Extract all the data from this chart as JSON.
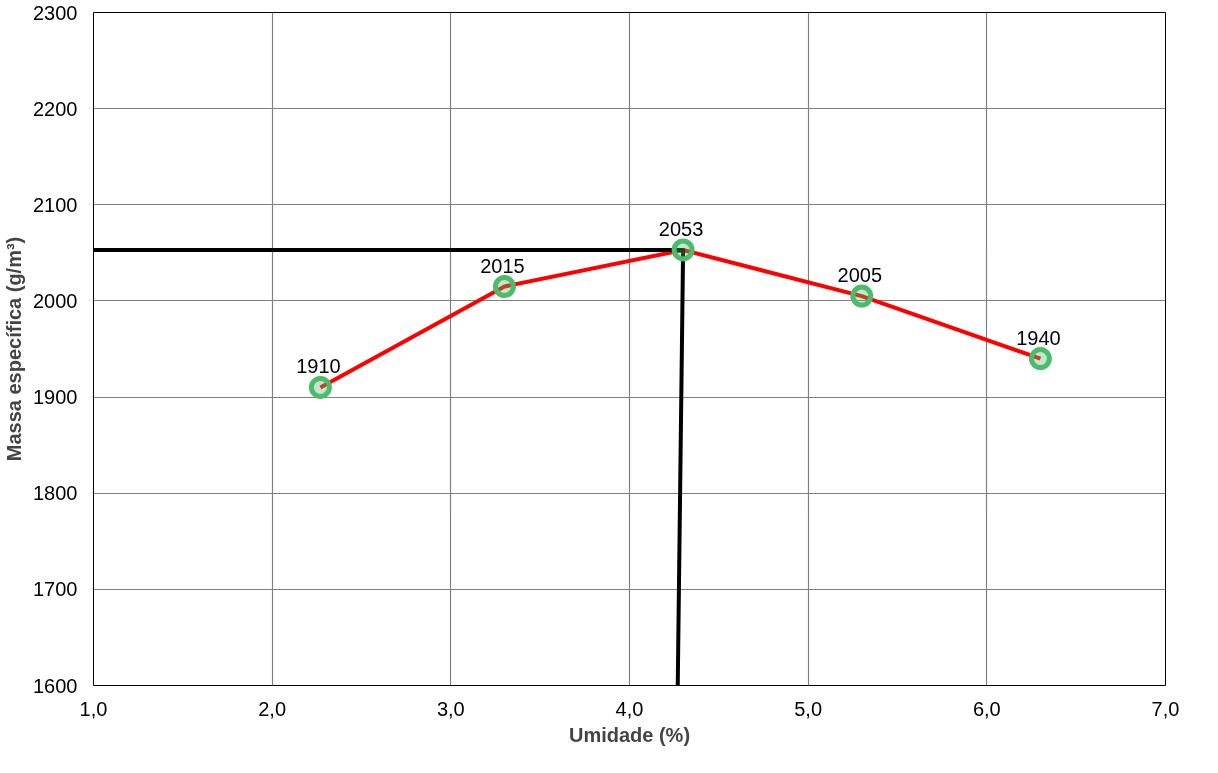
{
  "chart_data": {
    "type": "scatter",
    "xlabel": "Umidade (%)",
    "ylabel": "Massa específica (g/m³)",
    "xlim": [
      1.0,
      7.0
    ],
    "ylim": [
      1600,
      2300
    ],
    "xticks": [
      {
        "value": 1,
        "label": "1,0"
      },
      {
        "value": 2,
        "label": "2,0"
      },
      {
        "value": 3,
        "label": "3,0"
      },
      {
        "value": 4,
        "label": "4,0"
      },
      {
        "value": 5,
        "label": "5,0"
      },
      {
        "value": 6,
        "label": "6,0"
      },
      {
        "value": 7,
        "label": "7,0"
      }
    ],
    "yticks": [
      1600,
      1700,
      1800,
      1900,
      2000,
      2100,
      2200,
      2300
    ],
    "grid": true,
    "series": [
      {
        "type": "line",
        "color": "#ff0000",
        "x": [
          2.27,
          3.3,
          4.3,
          5.3,
          6.3
        ],
        "values": [
          1910,
          2015,
          2053,
          2005,
          1940
        ]
      },
      {
        "type": "line",
        "color": "#000000",
        "x": [
          1.0,
          4.3,
          4.27
        ],
        "values": [
          2053,
          2053,
          1600
        ]
      },
      {
        "type": "scatter",
        "color": "#4cbb6c",
        "marker": "circle",
        "x": [
          2.27,
          3.3,
          4.3,
          5.3,
          6.3
        ],
        "values": [
          1910,
          2015,
          2053,
          2005,
          1940
        ],
        "data_labels": true
      }
    ]
  }
}
